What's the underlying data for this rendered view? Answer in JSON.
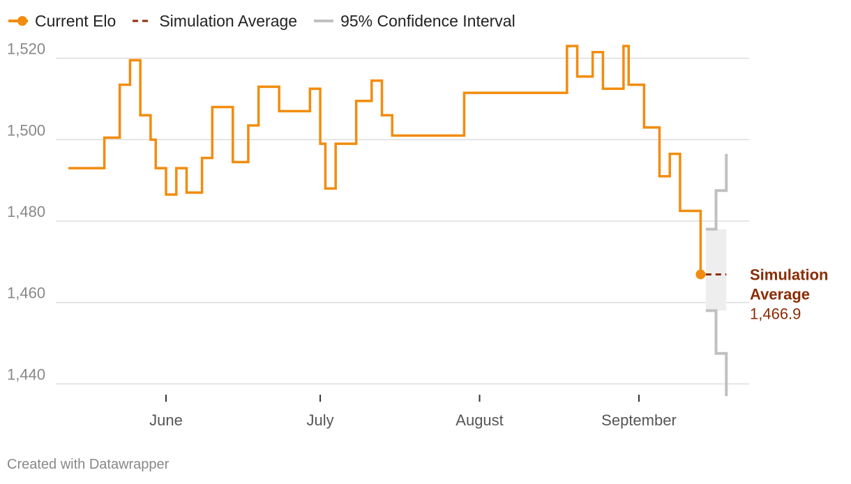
{
  "legend": {
    "current_elo": "Current Elo",
    "simulation_average": "Simulation Average",
    "confidence_interval": "95% Confidence Interval"
  },
  "colors": {
    "elo_line": "#f28c0e",
    "simulation_avg": "#8a2d05",
    "ci_line": "#c0c0c0",
    "ci_band": "#eeeeee",
    "grid": "#dddddd"
  },
  "annotation": {
    "title_line1": "Simulation",
    "title_line2": "Average",
    "value": "1,466.9"
  },
  "credit": "Created with Datawrapper",
  "chart_data": {
    "type": "line",
    "step": true,
    "ylim": [
      1437,
      1523
    ],
    "yticks": [
      1440,
      1460,
      1480,
      1500,
      1520
    ],
    "ytick_labels": [
      "1,440",
      "1,460",
      "1,480",
      "1,500",
      "1,520"
    ],
    "xlim": [
      0,
      130
    ],
    "xticks": [
      {
        "x": 19,
        "label": "June"
      },
      {
        "x": 49,
        "label": "July"
      },
      {
        "x": 80,
        "label": "August"
      },
      {
        "x": 111,
        "label": "September"
      }
    ],
    "series": [
      {
        "name": "Current Elo",
        "x": [
          0,
          4,
          7,
          10,
          12,
          14,
          16,
          17,
          19,
          21,
          23,
          26,
          28,
          32,
          35,
          37,
          41,
          47,
          49,
          50,
          52,
          56,
          59,
          61,
          63,
          77,
          96,
          97,
          99,
          102,
          104,
          108,
          109,
          112,
          115,
          117,
          119,
          123
        ],
        "y": [
          1493,
          1493,
          1500.5,
          1513.5,
          1519.5,
          1506,
          1500,
          1493,
          1486.5,
          1493,
          1487,
          1495.5,
          1508,
          1494.5,
          1503.5,
          1513,
          1507,
          1512.5,
          1499,
          1488,
          1499,
          1509.5,
          1514.5,
          1506,
          1501,
          1511.5,
          1511.5,
          1523,
          1515.5,
          1521.5,
          1512.5,
          1523,
          1513.5,
          1503,
          1491,
          1496.5,
          1482.5,
          1476.5
        ],
        "end": {
          "x": 123,
          "y": 1466.9
        }
      },
      {
        "name": "Simulation Average",
        "x": [
          124,
          128
        ],
        "y": [
          1466.9,
          1466.9
        ]
      },
      {
        "name": "95% Confidence Interval",
        "upper": {
          "x": [
            124,
            126,
            128
          ],
          "y": [
            1478,
            1487.5,
            1496.5
          ]
        },
        "lower": {
          "x": [
            124,
            126,
            128
          ],
          "y": [
            1458,
            1447.5,
            1437
          ]
        }
      }
    ]
  }
}
